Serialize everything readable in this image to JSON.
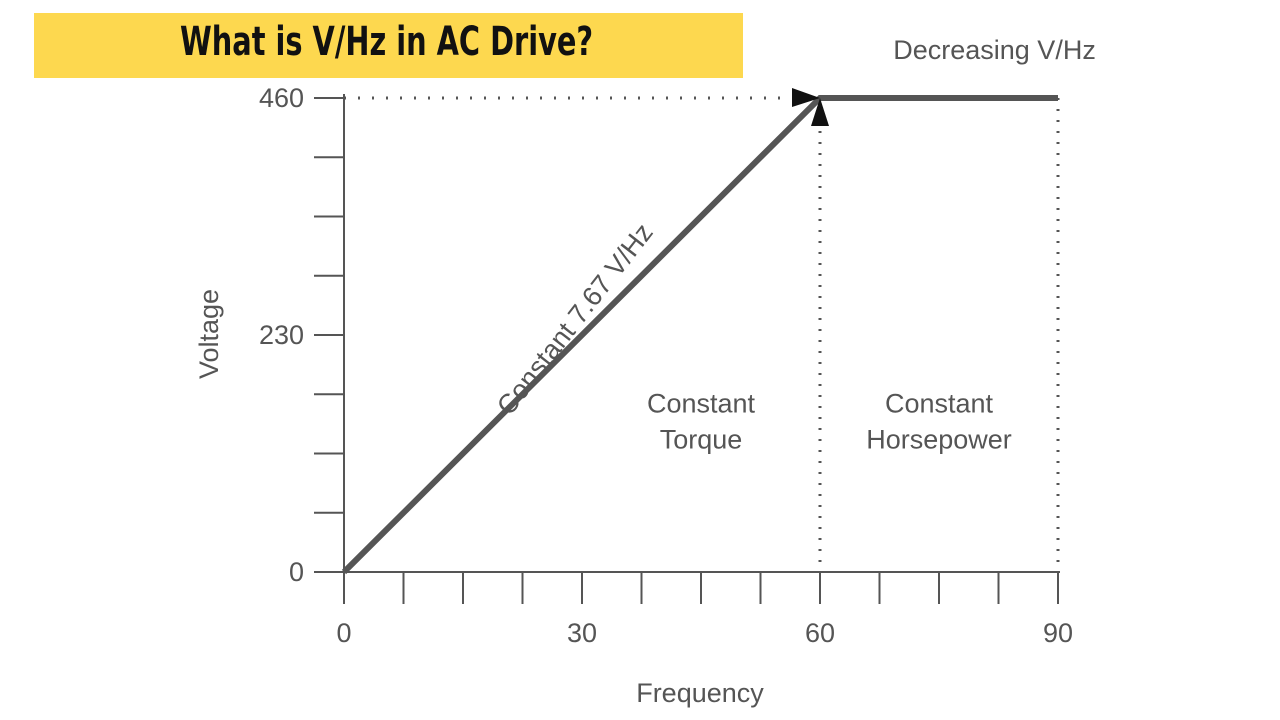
{
  "title": "What is V/Hz in AC Drive?",
  "colors": {
    "banner": "#fdd84f",
    "line": "#555555",
    "text": "#555555"
  },
  "chart_data": {
    "type": "line",
    "xlabel": "Frequency",
    "ylabel": "Voltage",
    "xlim": [
      0,
      90
    ],
    "ylim": [
      0,
      460
    ],
    "x_ticks": [
      0,
      30,
      60,
      90
    ],
    "y_ticks": [
      0,
      230,
      460
    ],
    "x_minor_step": 7.5,
    "y_minor_step": 57.5,
    "series": [
      {
        "x": [
          0,
          60,
          90
        ],
        "y": [
          0,
          460,
          460
        ]
      }
    ],
    "reference_lines": [
      {
        "axis": "x",
        "value": 60
      },
      {
        "axis": "x",
        "value": 90
      },
      {
        "axis": "y",
        "value": 460
      }
    ],
    "annotations": [
      {
        "text": "Constant 7.67 V/Hz",
        "x": 30,
        "y": 240,
        "angle": -52
      },
      {
        "text": "Decreasing V/Hz",
        "x": 82,
        "y": 498
      },
      {
        "text": "Constant",
        "x": 45,
        "y": 155
      },
      {
        "text": "Torque",
        "x": 45,
        "y": 120
      },
      {
        "text": "Constant",
        "x": 75,
        "y": 155
      },
      {
        "text": "Horsepower",
        "x": 75,
        "y": 120
      }
    ]
  }
}
